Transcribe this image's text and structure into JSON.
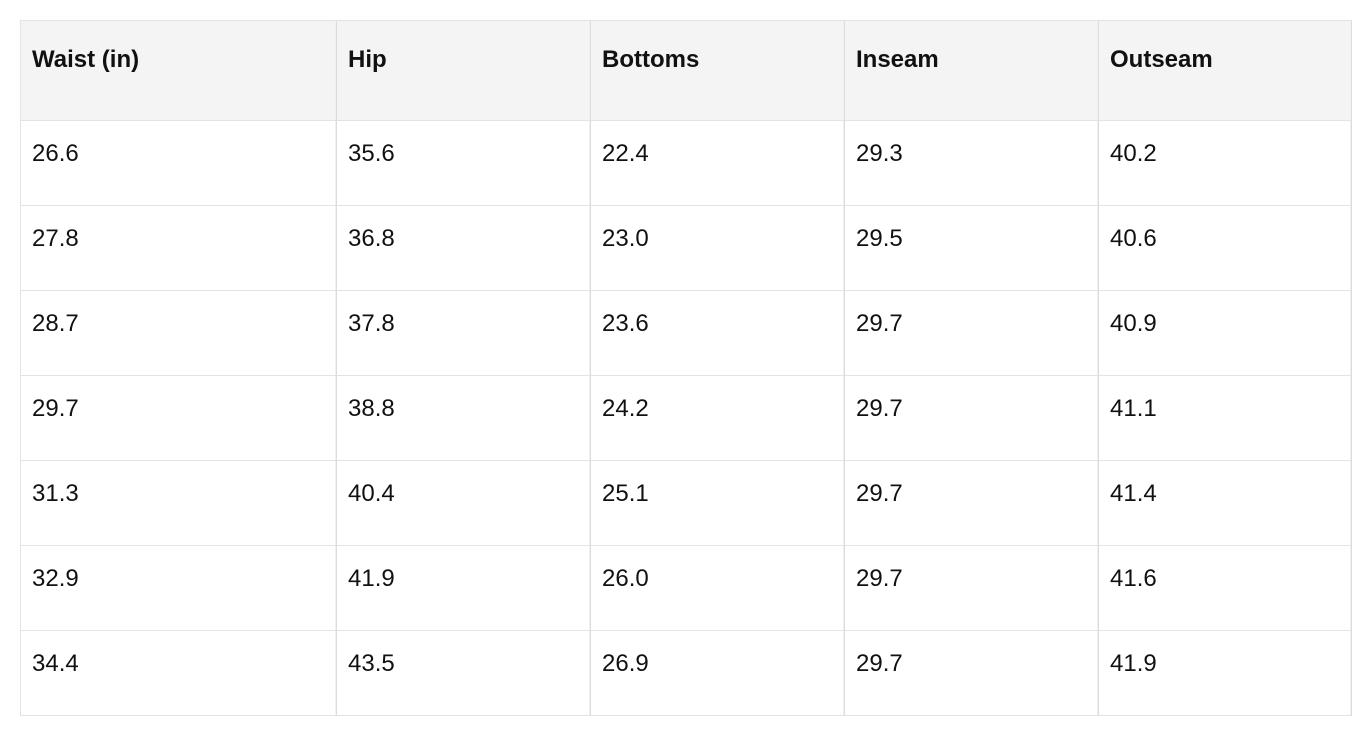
{
  "table": {
    "header": [
      "Waist (in)",
      "Hip",
      "Bottoms",
      "Inseam",
      "Outseam"
    ],
    "rows": [
      [
        "26.6",
        "35.6",
        "22.4",
        "29.3",
        "40.2"
      ],
      [
        "27.8",
        "36.8",
        "23.0",
        "29.5",
        "40.6"
      ],
      [
        "28.7",
        "37.8",
        "23.6",
        "29.7",
        "40.9"
      ],
      [
        "29.7",
        "38.8",
        "24.2",
        "29.7",
        "41.1"
      ],
      [
        "31.3",
        "40.4",
        "25.1",
        "29.7",
        "41.4"
      ],
      [
        "32.9",
        "41.9",
        "26.0",
        "29.7",
        "41.6"
      ],
      [
        "34.4",
        "43.5",
        "26.9",
        "29.7",
        "41.9"
      ]
    ]
  }
}
